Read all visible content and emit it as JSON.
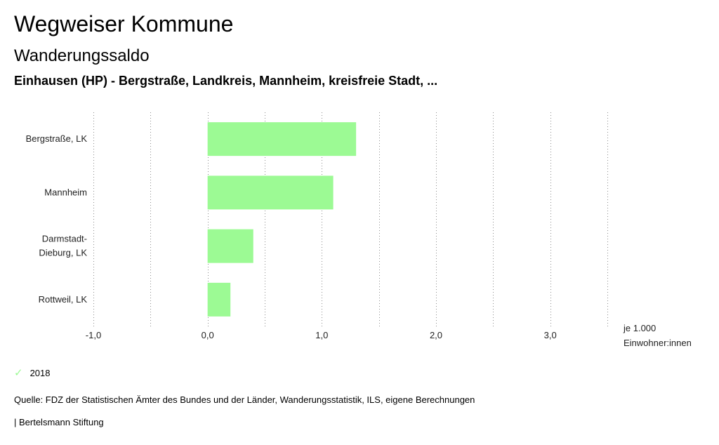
{
  "header": {
    "title": "Wegweiser Kommune",
    "subtitle": "Wanderungssaldo",
    "context": "Einhausen (HP) - Bergstraße, Landkreis, Mannheim, kreisfreie Stadt, ..."
  },
  "chart_data": {
    "type": "bar",
    "orientation": "horizontal",
    "categories": [
      "Bergstraße, LK",
      "Mannheim",
      "Darmstadt-Dieburg, LK",
      "Rottweil, LK"
    ],
    "category_lines": [
      [
        "Bergstraße, LK"
      ],
      [
        "Mannheim"
      ],
      [
        "Darmstadt-",
        "Dieburg, LK"
      ],
      [
        "Rottweil, LK"
      ]
    ],
    "series": [
      {
        "name": "2018",
        "values": [
          1.3,
          1.1,
          0.4,
          0.2
        ],
        "color": "#9cfa94"
      }
    ],
    "xlim": [
      -1.0,
      3.5
    ],
    "xticks": [
      -1.0,
      0.0,
      1.0,
      2.0,
      3.0
    ],
    "xtick_labels": [
      "-1,0",
      "0,0",
      "1,0",
      "2,0",
      "3,0"
    ],
    "unit_lines": [
      "je 1.000",
      "Einwohner:innen"
    ],
    "grid": true,
    "legend_position": "bottom-left"
  },
  "legend": {
    "label": "2018",
    "icon": "check-icon"
  },
  "footer": {
    "source": "Quelle: FDZ der Statistischen Ämter des Bundes und der Länder, Wanderungsstatistik, ILS, eigene Berechnungen",
    "brand": "| Bertelsmann Stiftung"
  }
}
